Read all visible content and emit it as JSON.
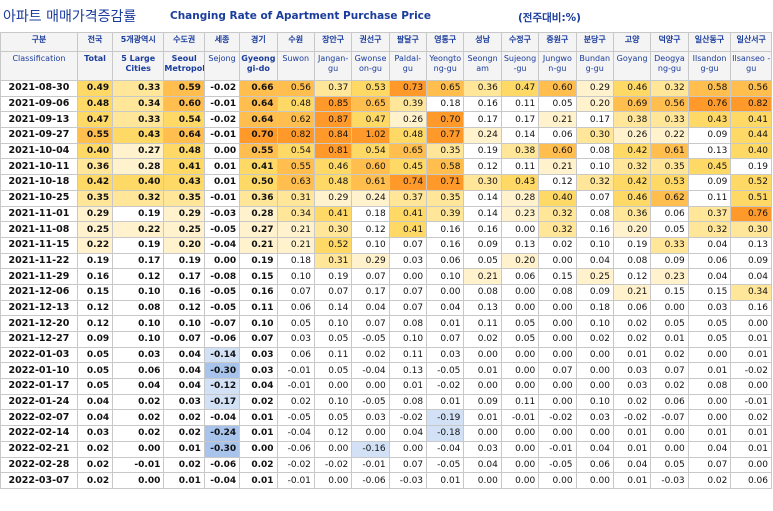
{
  "title": {
    "korean": "아파트 매매가격증감률",
    "english": "Changing Rate of Apartment Purchase Price",
    "unit": "(전주대비:%)"
  },
  "columns": [
    {
      "ko": "구분",
      "en": "Classification"
    },
    {
      "ko": "전국",
      "en": "Total"
    },
    {
      "ko": "5개광역시",
      "en": "5 Large Cities"
    },
    {
      "ko": "수도권",
      "en": "Seoul Metropolitan"
    },
    {
      "ko": "세종",
      "en": "Sejong"
    },
    {
      "ko": "경기",
      "en": "Gyeong gi-do"
    },
    {
      "ko": "수원",
      "en": "Suwon"
    },
    {
      "ko": "장안구",
      "en": "Jangan-gu"
    },
    {
      "ko": "권선구",
      "en": "Gwonse on-gu"
    },
    {
      "ko": "팔달구",
      "en": "Paldal-gu"
    },
    {
      "ko": "영통구",
      "en": "Yeongto ng-gu"
    },
    {
      "ko": "성남",
      "en": "Seongn am"
    },
    {
      "ko": "수정구",
      "en": "Sujeong -gu"
    },
    {
      "ko": "중원구",
      "en": "Jungwo n-gu"
    },
    {
      "ko": "분당구",
      "en": "Bundan g-gu"
    },
    {
      "ko": "고양",
      "en": "Goyang"
    },
    {
      "ko": "덕양구",
      "en": "Deogya ng-gu"
    },
    {
      "ko": "일산동구",
      "en": "Ilsandon g-gu"
    },
    {
      "ko": "일산서구",
      "en": "Ilsanseo -gu"
    }
  ],
  "rows": [
    [
      "2021-08-30",
      "0.49",
      "0.33",
      "0.59",
      "-0.02",
      "0.66",
      "0.56",
      "0.37",
      "0.53",
      "0.73",
      "0.65",
      "0.36",
      "0.47",
      "0.60",
      "0.29",
      "0.46",
      "0.32",
      "0.58",
      "0.56"
    ],
    [
      "2021-09-06",
      "0.48",
      "0.34",
      "0.60",
      "-0.01",
      "0.64",
      "0.48",
      "0.85",
      "0.65",
      "0.39",
      "0.18",
      "0.16",
      "0.11",
      "0.05",
      "0.20",
      "0.69",
      "0.56",
      "0.76",
      "0.82"
    ],
    [
      "2021-09-13",
      "0.47",
      "0.33",
      "0.54",
      "-0.02",
      "0.64",
      "0.62",
      "0.87",
      "0.47",
      "0.26",
      "0.70",
      "0.17",
      "0.17",
      "0.21",
      "0.17",
      "0.38",
      "0.33",
      "0.43",
      "0.41"
    ],
    [
      "2021-09-27",
      "0.55",
      "0.43",
      "0.64",
      "-0.01",
      "0.70",
      "0.82",
      "0.84",
      "1.02",
      "0.48",
      "0.77",
      "0.24",
      "0.14",
      "0.06",
      "0.30",
      "0.26",
      "0.22",
      "0.09",
      "0.44"
    ],
    [
      "2021-10-04",
      "0.40",
      "0.27",
      "0.48",
      "0.00",
      "0.55",
      "0.54",
      "0.81",
      "0.54",
      "0.65",
      "0.35",
      "0.19",
      "0.38",
      "0.60",
      "0.08",
      "0.42",
      "0.61",
      "0.13",
      "0.40"
    ],
    [
      "2021-10-11",
      "0.36",
      "0.28",
      "0.41",
      "0.01",
      "0.41",
      "0.55",
      "0.46",
      "0.60",
      "0.45",
      "0.58",
      "0.12",
      "0.11",
      "0.21",
      "0.10",
      "0.32",
      "0.35",
      "0.45",
      "0.19"
    ],
    [
      "2021-10-18",
      "0.42",
      "0.40",
      "0.43",
      "0.01",
      "0.50",
      "0.63",
      "0.48",
      "0.61",
      "0.74",
      "0.71",
      "0.30",
      "0.43",
      "0.12",
      "0.32",
      "0.42",
      "0.53",
      "0.09",
      "0.52"
    ],
    [
      "2021-10-25",
      "0.35",
      "0.32",
      "0.35",
      "-0.01",
      "0.36",
      "0.31",
      "0.29",
      "0.24",
      "0.37",
      "0.35",
      "0.14",
      "0.28",
      "0.40",
      "0.07",
      "0.46",
      "0.62",
      "0.11",
      "0.51"
    ],
    [
      "2021-11-01",
      "0.29",
      "0.19",
      "0.29",
      "-0.03",
      "0.28",
      "0.34",
      "0.41",
      "0.18",
      "0.41",
      "0.39",
      "0.14",
      "0.23",
      "0.32",
      "0.08",
      "0.36",
      "0.06",
      "0.37",
      "0.76"
    ],
    [
      "2021-11-08",
      "0.25",
      "0.22",
      "0.25",
      "-0.05",
      "0.27",
      "0.21",
      "0.30",
      "0.12",
      "0.41",
      "0.16",
      "0.16",
      "0.00",
      "0.32",
      "0.16",
      "0.20",
      "0.05",
      "0.32",
      "0.30"
    ],
    [
      "2021-11-15",
      "0.22",
      "0.19",
      "0.20",
      "-0.04",
      "0.21",
      "0.21",
      "0.52",
      "0.10",
      "0.07",
      "0.16",
      "0.09",
      "0.13",
      "0.02",
      "0.10",
      "0.19",
      "0.33",
      "0.04",
      "0.13"
    ],
    [
      "2021-11-22",
      "0.19",
      "0.17",
      "0.19",
      "0.00",
      "0.19",
      "0.18",
      "0.31",
      "0.29",
      "0.03",
      "0.06",
      "0.05",
      "0.20",
      "0.00",
      "0.04",
      "0.08",
      "0.09",
      "0.06",
      "0.09"
    ],
    [
      "2021-11-29",
      "0.16",
      "0.12",
      "0.17",
      "-0.08",
      "0.15",
      "0.10",
      "0.19",
      "0.07",
      "0.00",
      "0.10",
      "0.21",
      "0.06",
      "0.15",
      "0.25",
      "0.12",
      "0.23",
      "0.04",
      "0.04"
    ],
    [
      "2021-12-06",
      "0.15",
      "0.10",
      "0.16",
      "-0.05",
      "0.16",
      "0.07",
      "0.07",
      "0.17",
      "0.07",
      "0.00",
      "0.08",
      "0.00",
      "0.08",
      "0.09",
      "0.21",
      "0.15",
      "0.15",
      "0.34"
    ],
    [
      "2021-12-13",
      "0.12",
      "0.08",
      "0.12",
      "-0.05",
      "0.11",
      "0.06",
      "0.14",
      "0.04",
      "0.07",
      "0.04",
      "0.13",
      "0.00",
      "0.00",
      "0.18",
      "0.06",
      "0.00",
      "0.03",
      "0.16"
    ],
    [
      "2021-12-20",
      "0.12",
      "0.10",
      "0.10",
      "-0.07",
      "0.10",
      "0.05",
      "0.10",
      "0.07",
      "0.08",
      "0.01",
      "0.11",
      "0.05",
      "0.00",
      "0.10",
      "0.02",
      "0.05",
      "0.05",
      "0.00"
    ],
    [
      "2021-12-27",
      "0.09",
      "0.10",
      "0.07",
      "-0.06",
      "0.07",
      "0.03",
      "0.05",
      "-0.05",
      "0.10",
      "0.07",
      "0.02",
      "0.05",
      "0.00",
      "0.02",
      "0.02",
      "0.01",
      "0.05",
      "0.01"
    ],
    [
      "2022-01-03",
      "0.05",
      "0.03",
      "0.04",
      "-0.14",
      "0.03",
      "0.06",
      "0.11",
      "0.02",
      "0.11",
      "0.03",
      "0.00",
      "0.00",
      "0.00",
      "0.00",
      "0.01",
      "0.02",
      "0.00",
      "0.01"
    ],
    [
      "2022-01-10",
      "0.05",
      "0.06",
      "0.04",
      "-0.30",
      "0.03",
      "-0.01",
      "0.05",
      "-0.04",
      "0.13",
      "-0.05",
      "0.01",
      "0.00",
      "0.07",
      "0.00",
      "0.03",
      "0.07",
      "0.01",
      "-0.02"
    ],
    [
      "2022-01-17",
      "0.05",
      "0.04",
      "0.04",
      "-0.12",
      "0.04",
      "-0.01",
      "0.00",
      "0.00",
      "0.01",
      "-0.02",
      "0.00",
      "0.00",
      "0.00",
      "0.00",
      "0.03",
      "0.02",
      "0.08",
      "0.00"
    ],
    [
      "2022-01-24",
      "0.04",
      "0.02",
      "0.03",
      "-0.17",
      "0.02",
      "0.02",
      "0.10",
      "-0.05",
      "0.08",
      "0.01",
      "0.09",
      "0.11",
      "0.00",
      "0.10",
      "0.02",
      "0.06",
      "0.00",
      "-0.01"
    ],
    [
      "2022-02-07",
      "0.04",
      "0.02",
      "0.02",
      "-0.04",
      "0.01",
      "-0.05",
      "0.05",
      "0.03",
      "-0.02",
      "-0.19",
      "0.01",
      "-0.01",
      "-0.02",
      "0.03",
      "-0.02",
      "-0.07",
      "0.00",
      "0.02"
    ],
    [
      "2022-02-14",
      "0.03",
      "0.02",
      "0.02",
      "-0.24",
      "0.01",
      "-0.04",
      "0.12",
      "0.00",
      "0.04",
      "-0.18",
      "0.00",
      "0.00",
      "0.00",
      "0.00",
      "0.01",
      "0.00",
      "0.01",
      "0.01"
    ],
    [
      "2022-02-21",
      "0.02",
      "0.00",
      "0.01",
      "-0.30",
      "0.00",
      "-0.06",
      "0.00",
      "-0.16",
      "0.00",
      "-0.04",
      "0.03",
      "0.00",
      "-0.01",
      "0.04",
      "0.01",
      "0.00",
      "0.04",
      "0.01"
    ],
    [
      "2022-02-28",
      "0.02",
      "-0.01",
      "0.02",
      "-0.06",
      "0.02",
      "-0.02",
      "-0.02",
      "-0.01",
      "0.07",
      "-0.05",
      "0.04",
      "0.00",
      "-0.05",
      "0.06",
      "0.04",
      "0.05",
      "0.07",
      "0.00"
    ],
    [
      "2022-03-07",
      "0.02",
      "0.00",
      "0.01",
      "-0.04",
      "0.01",
      "-0.01",
      "0.00",
      "-0.06",
      "-0.03",
      "0.01",
      "0.00",
      "0.00",
      "0.00",
      "0.00",
      "0.01",
      "-0.03",
      "0.02",
      "0.06"
    ]
  ],
  "colors": {
    "header_text": "#1a3c9c",
    "header_bg": "#f4f4f4",
    "heat_levels": [
      "#ffffff",
      "#fff2cc",
      "#ffe699",
      "#ffd966",
      "#ffbe4d",
      "#ff9a2a"
    ],
    "negative_strong": "#a9c4ec",
    "negative_mid": "#d2e1f6"
  }
}
